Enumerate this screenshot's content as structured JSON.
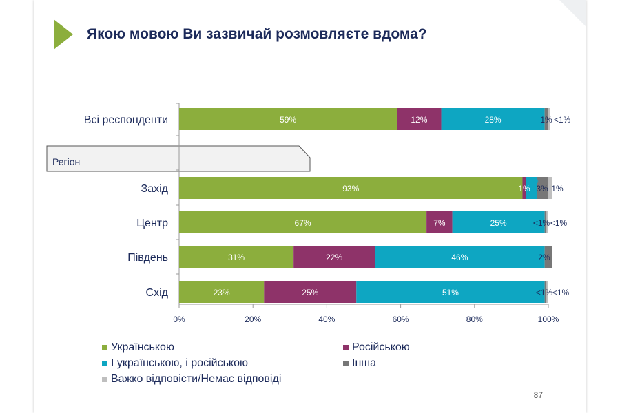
{
  "slide": {
    "title": "Якою мовою Ви зазвичай розмовляєте вдома?",
    "region_label": "Регіон",
    "page_number": "87"
  },
  "chart_data": {
    "type": "bar",
    "orientation": "horizontal",
    "stacked": true,
    "categories": [
      "Всі респонденти",
      "Захід",
      "Центр",
      "Південь",
      "Схід"
    ],
    "series": [
      {
        "name": "Українською",
        "color": "#8cae3d",
        "values": [
          59,
          93,
          67,
          31,
          23
        ],
        "labels": [
          "59%",
          "93%",
          "67%",
          "31%",
          "23%"
        ]
      },
      {
        "name": "Російською",
        "color": "#8e3369",
        "values": [
          12,
          1,
          7,
          22,
          25
        ],
        "labels": [
          "12%",
          "1%",
          "7%",
          "22%",
          "25%"
        ]
      },
      {
        "name": "І українською, і російською",
        "color": "#0ea6c2",
        "values": [
          28,
          3,
          25,
          46,
          51
        ],
        "labels": [
          "28%",
          "3%",
          "25%",
          "46%",
          "51%"
        ]
      },
      {
        "name": "Інша",
        "color": "#777777",
        "values": [
          1,
          3,
          0.5,
          2,
          0.5
        ],
        "labels": [
          "1%",
          "3%",
          "<1%",
          "2%",
          "<1%"
        ]
      },
      {
        "name": "Важко відповісти/Немає відповіді",
        "color": "#bfbfbf",
        "values": [
          0.5,
          1,
          0.5,
          0,
          0.5
        ],
        "labels": [
          "<1%",
          "1%",
          "<1%",
          "",
          "<1%"
        ]
      }
    ],
    "xlim": [
      0,
      100
    ],
    "xticks": [
      "0%",
      "20%",
      "40%",
      "60%",
      "80%",
      "100%"
    ],
    "grid": false,
    "legend_position": "bottom"
  }
}
